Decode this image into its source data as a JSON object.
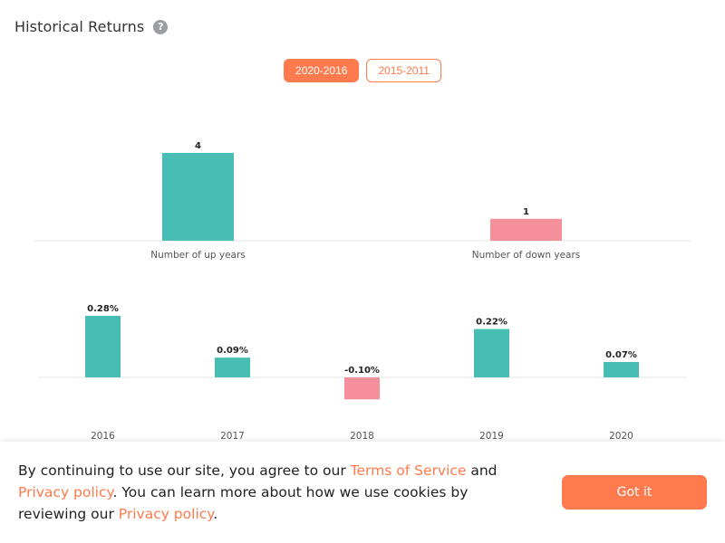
{
  "header": {
    "title": "Historical Returns",
    "help_icon": "question-circle-icon"
  },
  "tabs": [
    {
      "label": "2020-2016",
      "active": true
    },
    {
      "label": "2015-2011",
      "active": false
    }
  ],
  "colors": {
    "accent": "#ff7a4d",
    "up": "#47bdb4",
    "down": "#f4909a",
    "baseline": "#e6e6e6"
  },
  "chart_data": [
    {
      "type": "bar",
      "categories": [
        "Number of up years",
        "Number of down years"
      ],
      "values": [
        4,
        1
      ],
      "value_labels": [
        "4",
        "1"
      ],
      "ylim": [
        0,
        4
      ]
    },
    {
      "type": "bar",
      "categories": [
        "2016",
        "2017",
        "2018",
        "2019",
        "2020"
      ],
      "values": [
        0.28,
        0.09,
        -0.1,
        0.22,
        0.07
      ],
      "value_labels": [
        "0.28%",
        "0.09%",
        "-0.10%",
        "0.22%",
        "0.07%"
      ]
    }
  ],
  "cookie": {
    "text_1": "By continuing to use our site, you agree to our ",
    "terms_link": "Terms of Service",
    "text_2": " and ",
    "privacy_link_1": "Privacy policy",
    "text_3": ". You can learn more about how we use cookies by reviewing our ",
    "privacy_link_2": "Privacy policy",
    "text_4": ".",
    "button_label": "Got it"
  }
}
